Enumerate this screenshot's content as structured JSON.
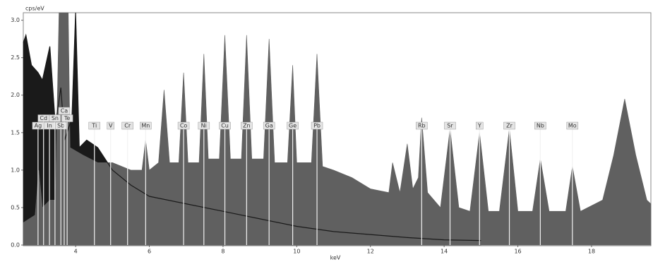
{
  "chart_data": {
    "type": "area",
    "x_label": "keV",
    "y_label": "cps/eV",
    "xlim": [
      2.58,
      19.61
    ],
    "ylim": [
      0,
      3.1
    ],
    "xticks": [
      4,
      6,
      8,
      10,
      12,
      14,
      16,
      18
    ],
    "yticks": [
      {
        "value": 0,
        "label": "0.0"
      },
      {
        "value": 0.5,
        "label": "0.5"
      },
      {
        "value": 1,
        "label": "1.0"
      },
      {
        "value": 1.5,
        "label": "1.5"
      },
      {
        "value": 2,
        "label": "2.0"
      },
      {
        "value": 2.5,
        "label": "2.5"
      },
      {
        "value": 3,
        "label": "3.0"
      }
    ],
    "series": [
      {
        "color": "#606060",
        "x": [
          2.58,
          2.9,
          3.0,
          3.1,
          3.3,
          3.45,
          3.55,
          3.6,
          3.8,
          3.85,
          4.2,
          4.6,
          5.0,
          5.5,
          5.8,
          5.9,
          6.0,
          6.25,
          6.4,
          6.55,
          6.8,
          6.93,
          7.05,
          7.35,
          7.48,
          7.6,
          7.9,
          8.05,
          8.2,
          8.5,
          8.64,
          8.78,
          9.1,
          9.25,
          9.4,
          9.75,
          9.89,
          10.0,
          10.4,
          10.55,
          10.7,
          11.0,
          11.5,
          12.0,
          12.5,
          12.6,
          12.8,
          13.0,
          13.15,
          13.3,
          13.39,
          13.55,
          13.9,
          14.16,
          14.4,
          14.7,
          14.96,
          15.2,
          15.5,
          15.77,
          16.0,
          16.4,
          16.61,
          16.85,
          17.3,
          17.48,
          17.7,
          18.3,
          18.6,
          18.9,
          19.2,
          19.5,
          19.61
        ],
        "values": [
          0.3,
          0.4,
          1.0,
          0.5,
          0.6,
          0.6,
          3.1,
          3.1,
          3.1,
          1.3,
          1.2,
          1.1,
          1.1,
          1.0,
          1.0,
          1.4,
          1.0,
          1.1,
          2.07,
          1.1,
          1.1,
          2.3,
          1.1,
          1.1,
          2.55,
          1.15,
          1.15,
          2.8,
          1.15,
          1.15,
          2.8,
          1.15,
          1.15,
          2.75,
          1.1,
          1.1,
          2.4,
          1.1,
          1.1,
          2.55,
          1.05,
          1.0,
          0.9,
          0.75,
          0.7,
          1.1,
          0.7,
          1.35,
          0.75,
          0.9,
          1.7,
          0.7,
          0.5,
          1.55,
          0.5,
          0.45,
          1.5,
          0.45,
          0.45,
          1.55,
          0.45,
          0.45,
          1.15,
          0.45,
          0.45,
          1.05,
          0.45,
          0.6,
          1.2,
          1.95,
          1.2,
          0.6,
          0.55
        ]
      },
      {
        "color": "#1a1a1a",
        "x": [
          2.58,
          2.65,
          2.8,
          2.98,
          3.1,
          3.3,
          3.45,
          3.6,
          3.7,
          3.9,
          4.0,
          4.1,
          4.3,
          4.6,
          5.0,
          5.5,
          6.0,
          7.0,
          8.0,
          9.0,
          10.0,
          11.0,
          12.0,
          13.0,
          14.0,
          15.0
        ],
        "values": [
          2.7,
          2.8,
          2.4,
          2.3,
          2.2,
          2.65,
          1.6,
          2.1,
          1.4,
          1.7,
          3.1,
          1.3,
          1.4,
          1.3,
          1.0,
          0.8,
          0.65,
          0.55,
          0.45,
          0.35,
          0.25,
          0.18,
          0.14,
          0.1,
          0.07,
          0.06
        ]
      }
    ],
    "markers": [
      {
        "label": "Ag",
        "energy": 2.98
      },
      {
        "label": "Cd",
        "energy": 3.13
      },
      {
        "label": "In",
        "energy": 3.29
      },
      {
        "label": "Sn",
        "energy": 3.44
      },
      {
        "label": "Sb",
        "energy": 3.6
      },
      {
        "label": "Ca",
        "energy": 3.69
      },
      {
        "label": "Te",
        "energy": 3.77
      },
      {
        "label": "Ti",
        "energy": 4.51
      },
      {
        "label": "V",
        "energy": 4.95
      },
      {
        "label": "Cr",
        "energy": 5.41
      },
      {
        "label": "Mn",
        "energy": 5.9
      },
      {
        "label": "Co",
        "energy": 6.93
      },
      {
        "label": "Ni",
        "energy": 7.48
      },
      {
        "label": "Cu",
        "energy": 8.05
      },
      {
        "label": "Zn",
        "energy": 8.64
      },
      {
        "label": "Ga",
        "energy": 9.25
      },
      {
        "label": "Ge",
        "energy": 9.89
      },
      {
        "label": "Pb",
        "energy": 10.55
      },
      {
        "label": "Rb",
        "energy": 13.39
      },
      {
        "label": "Sr",
        "energy": 14.16
      },
      {
        "label": "Y",
        "energy": 14.96
      },
      {
        "label": "Zr",
        "energy": 15.77
      },
      {
        "label": "Nb",
        "energy": 16.61
      },
      {
        "label": "Mo",
        "energy": 17.48
      }
    ]
  }
}
